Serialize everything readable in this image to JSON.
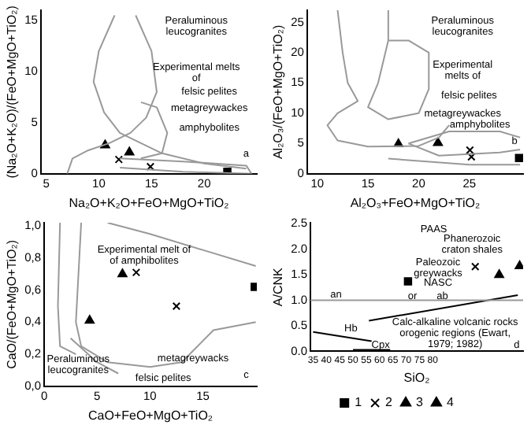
{
  "chart_data": [
    {
      "type": "scatter",
      "xlabel": "Na₂O+K₂O+FeO+MgO+TiO₂",
      "ylabel": "(Na₂O+K₂O)/(FeO+MgO+TiO₂)",
      "xlim": [
        4.5,
        25
      ],
      "ylim": [
        0,
        16
      ],
      "xticks": [
        5,
        10,
        15,
        20
      ],
      "yticks": [
        0,
        5,
        10,
        15
      ],
      "series": [
        {
          "type": "line",
          "color": "#999999",
          "marker": "none",
          "x": [
            11.5,
            10,
            9.5,
            10.5,
            12,
            14,
            16,
            20,
            24
          ],
          "values": [
            15.5,
            12,
            9,
            6,
            4,
            3,
            2,
            1,
            0.5
          ]
        },
        {
          "type": "line",
          "color": "#999999",
          "marker": "none",
          "x": [
            13.5,
            15,
            15.5,
            14.5,
            13,
            11,
            9,
            7.5,
            7
          ],
          "values": [
            15.5,
            12,
            8,
            5.5,
            4,
            3,
            2.3,
            1.5,
            0
          ]
        },
        {
          "type": "line",
          "color": "#999999",
          "marker": "none",
          "x": [
            14,
            15.5,
            16.5,
            16,
            14
          ],
          "values": [
            7,
            6.5,
            4,
            2,
            1.5
          ]
        },
        {
          "type": "line",
          "color": "#999999",
          "marker": "none",
          "x": [
            12,
            18,
            24,
            24.5,
            18,
            12
          ],
          "values": [
            1.5,
            1.2,
            0.8,
            0,
            0.2,
            0.6
          ]
        },
        {
          "type": "scatter",
          "color": "#000000",
          "marker": "square",
          "x": [
            22.2
          ],
          "values": [
            0.2
          ]
        },
        {
          "type": "scatter",
          "color": "#000000",
          "marker": "cross",
          "x": [
            11.9,
            14.9
          ],
          "values": [
            1.4,
            0.7
          ]
        },
        {
          "type": "scatter",
          "color": "#000000",
          "marker": "triangle",
          "x": [
            12.9
          ],
          "values": [
            2.1
          ]
        },
        {
          "type": "scatter",
          "color": "#000000",
          "marker": "triangle",
          "x": [
            10.6
          ],
          "values": [
            2.8
          ]
        }
      ],
      "annotations": [
        "Peraluminous\nleucogranites",
        "Experimental melts\nof",
        "felsic pelites",
        "metagreywackes",
        "amphybolites",
        "a"
      ]
    },
    {
      "type": "scatter",
      "xlabel": "Al₂O₃+FeO+MgO+TiO₂",
      "ylabel": "Al₂O₃/(FeO+MgO+TiO₂)",
      "xlim": [
        9,
        30.3
      ],
      "ylim": [
        0,
        27
      ],
      "xticks": [
        10,
        15,
        20,
        25
      ],
      "yticks": [
        0,
        5,
        10,
        15,
        20,
        25
      ],
      "series": [
        {
          "type": "line",
          "color": "#999999",
          "marker": "none",
          "x": [
            12,
            12.5,
            13,
            14,
            12,
            11,
            12,
            15,
            20,
            22,
            23
          ],
          "values": [
            27,
            20,
            15,
            12,
            10,
            8,
            5.5,
            4.5,
            4.6,
            6,
            8
          ]
        },
        {
          "type": "line",
          "color": "#999999",
          "marker": "none",
          "x": [
            17,
            17,
            16,
            15,
            17,
            20,
            21,
            21,
            19,
            17
          ],
          "values": [
            27,
            22,
            15,
            11,
            9,
            10,
            14,
            20,
            22,
            22
          ]
        },
        {
          "type": "line",
          "color": "#999999",
          "marker": "none",
          "x": [
            19,
            23,
            28,
            30
          ],
          "values": [
            5,
            7,
            7,
            6
          ]
        },
        {
          "type": "line",
          "color": "#999999",
          "marker": "none",
          "x": [
            19,
            22,
            28,
            30
          ],
          "values": [
            5,
            3,
            3.5,
            4
          ]
        },
        {
          "type": "line",
          "color": "#999999",
          "marker": "none",
          "x": [
            17,
            25,
            30
          ],
          "values": [
            2.5,
            1.5,
            1.5
          ]
        },
        {
          "type": "scatter",
          "color": "#000000",
          "marker": "square",
          "x": [
            29.9
          ],
          "values": [
            2.6
          ]
        },
        {
          "type": "scatter",
          "color": "#000000",
          "marker": "cross",
          "x": [
            25.05,
            25.2
          ],
          "values": [
            3.9,
            2.8
          ]
        },
        {
          "type": "scatter",
          "color": "#000000",
          "marker": "triangle",
          "x": [
            21.9
          ],
          "values": [
            5.1
          ]
        },
        {
          "type": "scatter",
          "color": "#000000",
          "marker": "triangle",
          "x": [
            18
          ],
          "values": [
            4.9
          ]
        }
      ],
      "annotations": [
        "Peraluminous\nleucogranites",
        "Experimental\nmelts of",
        "felsic pelites",
        "metagreywackes",
        "amphybolites",
        "b"
      ]
    },
    {
      "type": "scatter",
      "xlabel": "CaO+FeO+MgO+TiO₂",
      "ylabel": "CaO/(FeO+MgO+TiO₂)",
      "xlim": [
        0,
        20.1
      ],
      "ylim": [
        0,
        1.02
      ],
      "xticks": [
        0,
        5,
        10,
        15
      ],
      "yticks": [
        {
          "value": 0,
          "label": "0,0"
        },
        {
          "value": 0.2,
          "label": "0,2"
        },
        {
          "value": 0.4,
          "label": "0,4"
        },
        {
          "value": 0.6,
          "label": "0,6"
        },
        {
          "value": 0.8,
          "label": "0,8"
        },
        {
          "value": 1,
          "label": "1,0"
        }
      ],
      "series": [
        {
          "type": "line",
          "color": "#999999",
          "marker": "none",
          "x": [
            1.5,
            1.3,
            1.5,
            3
          ],
          "values": [
            1.02,
            0.5,
            0.25,
            0.2
          ]
        },
        {
          "type": "line",
          "color": "#999999",
          "marker": "none",
          "x": [
            3.5,
            3,
            3.5,
            6,
            10,
            13,
            16,
            20
          ],
          "values": [
            1.02,
            0.4,
            0.25,
            0.15,
            0.12,
            0.15,
            0.35,
            0.4
          ]
        },
        {
          "type": "line",
          "color": "#999999",
          "marker": "none",
          "x": [
            6,
            10,
            15,
            20
          ],
          "values": [
            1.02,
            0.95,
            0.85,
            0.75
          ]
        },
        {
          "type": "line",
          "color": "#999999",
          "marker": "none",
          "x": [
            2.5,
            5,
            7
          ],
          "values": [
            0.3,
            0.15,
            0.08
          ]
        },
        {
          "type": "scatter",
          "color": "#000000",
          "marker": "square",
          "x": [
            19.9
          ],
          "values": [
            0.62
          ]
        },
        {
          "type": "scatter",
          "color": "#000000",
          "marker": "cross",
          "x": [
            8.7,
            12.5
          ],
          "values": [
            0.71,
            0.5
          ]
        },
        {
          "type": "scatter",
          "color": "#000000",
          "marker": "triangle",
          "x": [
            4.3
          ],
          "values": [
            0.41
          ]
        },
        {
          "type": "scatter",
          "color": "#000000",
          "marker": "triangle",
          "x": [
            7.4
          ],
          "values": [
            0.7
          ]
        }
      ],
      "annotations": [
        "Experimental melt of\nof amphibolites",
        "Peraluminous\nleucogranites",
        "metagreywacks",
        "felsic pelites",
        "c"
      ]
    },
    {
      "type": "scatter",
      "xlabel": "SiO₂",
      "ylabel": "A/CNK",
      "xlim": [
        34,
        114
      ],
      "ylim": [
        0,
        2.52
      ],
      "xticks": [
        35,
        40,
        45,
        50,
        55,
        60,
        65,
        70,
        75,
        80
      ],
      "yticks": [
        {
          "value": 0,
          "label": "0.0"
        },
        {
          "value": 0.5,
          "label": "0.5"
        },
        {
          "value": 1,
          "label": "1.0"
        },
        {
          "value": 1.5,
          "label": "1.5"
        },
        {
          "value": 2,
          "label": "2.0"
        },
        {
          "value": 2.5,
          "label": "2.5"
        }
      ],
      "legend": "bottom",
      "ref_lines": [
        {
          "axis": "y",
          "value": 1,
          "color": "#999999"
        }
      ],
      "series": [
        {
          "type": "line",
          "color": "#000000",
          "marker": "none",
          "x": [
            56,
            112
          ],
          "values": [
            0.6,
            1.1
          ]
        },
        {
          "type": "line",
          "color": "#000000",
          "marker": "none",
          "x": [
            35,
            57
          ],
          "values": [
            0.38,
            0.2
          ]
        },
        {
          "type": "line",
          "color": "#000000",
          "marker": "none",
          "x": [
            50,
            64
          ],
          "values": [
            0.03,
            0.03
          ]
        },
        {
          "name": "1",
          "type": "scatter",
          "color": "#000000",
          "marker": "square",
          "x": [
            70.7
          ],
          "values": [
            1.37
          ]
        },
        {
          "name": "2",
          "type": "scatter",
          "color": "#000000",
          "marker": "cross",
          "x": [
            96
          ],
          "values": [
            1.66
          ]
        },
        {
          "name": "3",
          "type": "scatter",
          "color": "#000000",
          "marker": "triangle",
          "x": [
            112.7
          ],
          "values": [
            1.67
          ]
        },
        {
          "name": "4",
          "type": "scatter",
          "color": "#000000",
          "marker": "triangle",
          "x": [
            105
          ],
          "values": [
            1.5
          ]
        }
      ],
      "annotations": [
        "PAAS",
        "Phanerozoic\ncraton shales",
        "Paleozoic\ngreywacks",
        "NASC",
        "an",
        "or",
        "ab",
        "Hb",
        "Cpx",
        "Calc-alkaline volcanic rocks\norogenic regions (Ewart,\n1979; 1982)",
        "d"
      ]
    }
  ]
}
